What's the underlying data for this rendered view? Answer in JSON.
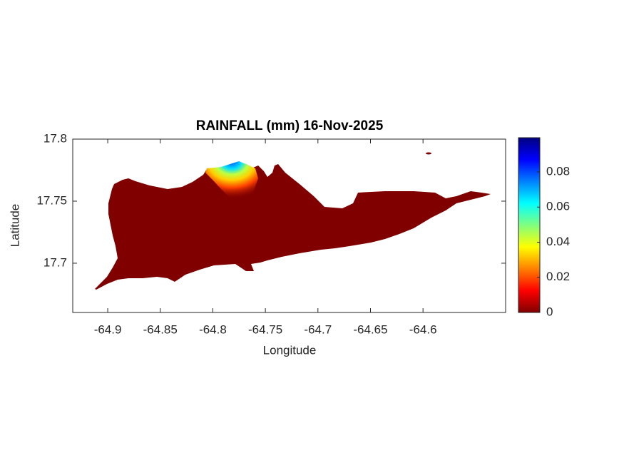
{
  "chart_data": {
    "type": "heatmap-map",
    "title": "RAINFALL (mm) 16-Nov-2025",
    "x_label": "Longitude",
    "y_label": "Latitude",
    "xlim": [
      -64.9333,
      -64.5214
    ],
    "xticks": [
      -64.9,
      -64.85,
      -64.8,
      -64.75,
      -64.7,
      -64.65,
      -64.6
    ],
    "ylim": [
      17.6603,
      17.8
    ],
    "yticks": [
      17.7,
      17.75,
      17.8
    ],
    "colorbar": {
      "clim": [
        0,
        0.0995
      ],
      "ticks": [
        0,
        0.02,
        0.04,
        0.06,
        0.08
      ],
      "colormap": [
        "#800000",
        "#ff0000",
        "#ff8000",
        "#ffff00",
        "#80ff80",
        "#00ffff",
        "#0080ff",
        "#0000ff",
        "#000080"
      ]
    }
  }
}
